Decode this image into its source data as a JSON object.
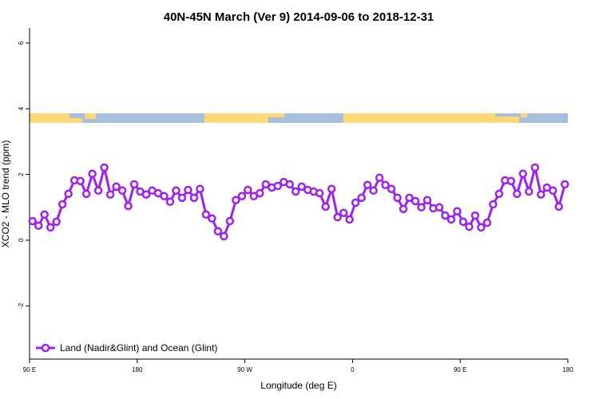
{
  "chart_data": {
    "type": "line",
    "title": "40N-45N March (Ver 9)   2014-09-06 to 2018-12-31",
    "xlabel": "Longitude (deg E)",
    "ylabel": "XCO2 - MLO trend (ppm)",
    "x": [
      92.5,
      97.5,
      102.5,
      107.5,
      112.5,
      117.5,
      122.5,
      127.5,
      132.5,
      137.5,
      142.5,
      147.5,
      152.5,
      157.5,
      162.5,
      167.5,
      172.5,
      177.5,
      182.5,
      187.5,
      192.5,
      197.5,
      202.5,
      207.5,
      212.5,
      217.5,
      222.5,
      227.5,
      232.5,
      237.5,
      242.5,
      247.5,
      252.5,
      257.5,
      262.5,
      267.5,
      272.5,
      277.5,
      282.5,
      287.5,
      292.5,
      297.5,
      302.5,
      307.5,
      312.5,
      317.5,
      322.5,
      327.5,
      332.5,
      337.5,
      342.5,
      347.5,
      352.5,
      357.5,
      362.5,
      367.5,
      372.5,
      377.5,
      382.5,
      387.5,
      392.5,
      397.5,
      402.5,
      407.5,
      412.5,
      417.5,
      422.5,
      427.5,
      432.5,
      437.5,
      442.5,
      447.5,
      452.5,
      457.5,
      462.5,
      467.5,
      472.5,
      477.5,
      482.5,
      487.5,
      492.5,
      497.5,
      502.5,
      507.5,
      512.5,
      517.5,
      522.5,
      527.5,
      532.5,
      537.5
    ],
    "series": [
      {
        "name": "Land (Nadir&Glint) and Ocean (Glint)",
        "color": "#a020f0",
        "values": [
          0.58,
          0.44,
          0.78,
          0.39,
          0.56,
          1.09,
          1.41,
          1.82,
          1.8,
          1.41,
          2.02,
          1.51,
          2.21,
          1.39,
          1.63,
          1.51,
          1.04,
          1.7,
          1.48,
          1.39,
          1.51,
          1.43,
          1.34,
          1.17,
          1.51,
          1.29,
          1.53,
          1.29,
          1.56,
          0.78,
          0.66,
          0.27,
          0.12,
          0.58,
          1.22,
          1.34,
          1.53,
          1.34,
          1.43,
          1.7,
          1.6,
          1.65,
          1.77,
          1.7,
          1.48,
          1.63,
          1.53,
          1.48,
          1.43,
          1.02,
          1.56,
          0.7,
          0.83,
          0.63,
          1.14,
          1.29,
          1.68,
          1.51,
          1.9,
          1.68,
          1.56,
          1.29,
          0.95,
          1.29,
          1.19,
          1.0,
          1.22,
          0.97,
          1.0,
          0.75,
          0.63,
          0.88,
          0.56,
          0.41,
          0.75,
          0.39,
          0.53,
          1.09,
          1.41,
          1.82,
          1.8,
          1.41,
          2.02,
          1.48,
          2.21,
          1.39,
          1.6,
          1.51,
          1.02,
          1.7
        ]
      }
    ],
    "xlim": [
      90,
      540
    ],
    "xticks": [
      {
        "value": 90,
        "label": "90 E"
      },
      180,
      {
        "value": 270,
        "label": "90 W"
      },
      {
        "value": 360,
        "label": "0"
      },
      {
        "value": 450,
        "label": "90 E"
      },
      {
        "value": 540,
        "label": "180"
      }
    ],
    "ylim": [
      -3.62,
      6.46
    ],
    "yticks": [
      -2,
      0,
      2,
      4,
      6
    ],
    "legend": "bottom-left"
  }
}
